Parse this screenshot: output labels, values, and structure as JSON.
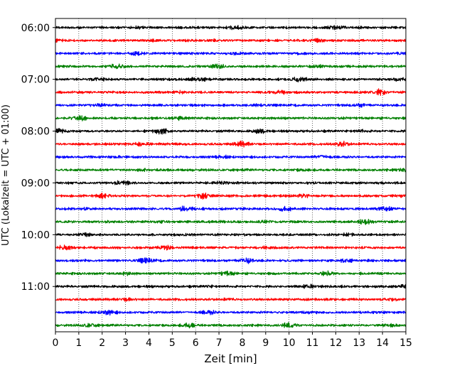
{
  "chart_data": {
    "type": "line",
    "title": "",
    "xlabel": "Zeit  [min]",
    "ylabel": "UTC (Lokalzeit = UTC + 01:00)",
    "xlim": [
      0,
      15
    ],
    "xticks": [
      0,
      1,
      2,
      3,
      4,
      5,
      6,
      7,
      8,
      9,
      10,
      11,
      12,
      13,
      14,
      15
    ],
    "ylim_traces": [
      -0.7,
      23.5
    ],
    "x_grid": "dotted vertical",
    "y_grid": false,
    "yticks": [
      {
        "label": "06:00",
        "trace_index": 0
      },
      {
        "label": "07:00",
        "trace_index": 4
      },
      {
        "label": "08:00",
        "trace_index": 8
      },
      {
        "label": "09:00",
        "trace_index": 12
      },
      {
        "label": "10:00",
        "trace_index": 16
      },
      {
        "label": "11:00",
        "trace_index": 20
      }
    ],
    "trace_colors": [
      "#000000",
      "#ff0000",
      "#0000ff",
      "#008000"
    ],
    "traces": [
      {
        "start": "06:00",
        "color": "#000000"
      },
      {
        "start": "06:15",
        "color": "#ff0000"
      },
      {
        "start": "06:30",
        "color": "#0000ff"
      },
      {
        "start": "06:45",
        "color": "#008000"
      },
      {
        "start": "07:00",
        "color": "#000000"
      },
      {
        "start": "07:15",
        "color": "#ff0000"
      },
      {
        "start": "07:30",
        "color": "#0000ff"
      },
      {
        "start": "07:45",
        "color": "#008000"
      },
      {
        "start": "08:00",
        "color": "#000000"
      },
      {
        "start": "08:15",
        "color": "#ff0000"
      },
      {
        "start": "08:30",
        "color": "#0000ff"
      },
      {
        "start": "08:45",
        "color": "#008000"
      },
      {
        "start": "09:00",
        "color": "#000000"
      },
      {
        "start": "09:15",
        "color": "#ff0000"
      },
      {
        "start": "09:30",
        "color": "#0000ff"
      },
      {
        "start": "09:45",
        "color": "#008000"
      },
      {
        "start": "10:00",
        "color": "#000000"
      },
      {
        "start": "10:15",
        "color": "#ff0000"
      },
      {
        "start": "10:30",
        "color": "#0000ff"
      },
      {
        "start": "10:45",
        "color": "#008000"
      },
      {
        "start": "11:00",
        "color": "#000000"
      },
      {
        "start": "11:15",
        "color": "#ff0000"
      },
      {
        "start": "11:30",
        "color": "#0000ff"
      },
      {
        "start": "11:45",
        "color": "#008000"
      }
    ]
  }
}
